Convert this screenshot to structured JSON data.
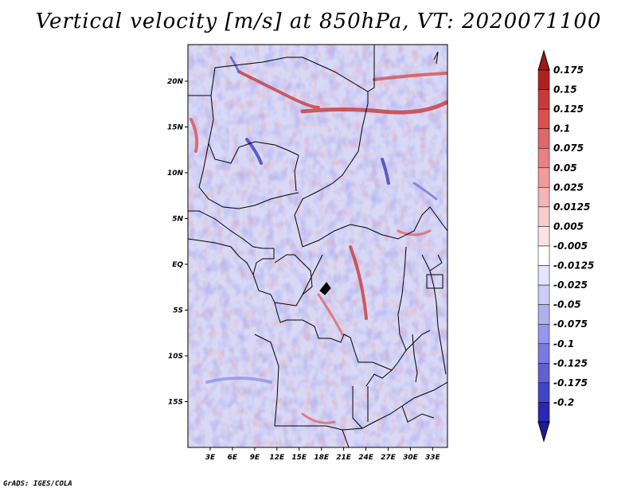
{
  "title": "Vertical velocity [m/s] at 850hPa, VT: 2020071100",
  "footer": "GrADS: IGES/COLA",
  "map": {
    "region": "Central Africa",
    "lon_range": [
      0,
      35
    ],
    "lat_range": [
      -20,
      24
    ],
    "lon_ticks": [
      {
        "value": 3,
        "label": "3E"
      },
      {
        "value": 6,
        "label": "6E"
      },
      {
        "value": 9,
        "label": "9E"
      },
      {
        "value": 12,
        "label": "12E"
      },
      {
        "value": 15,
        "label": "15E"
      },
      {
        "value": 18,
        "label": "18E"
      },
      {
        "value": 21,
        "label": "21E"
      },
      {
        "value": 24,
        "label": "24E"
      },
      {
        "value": 27,
        "label": "27E"
      },
      {
        "value": 30,
        "label": "30E"
      },
      {
        "value": 33,
        "label": "33E"
      }
    ],
    "lat_ticks": [
      {
        "value": 20,
        "label": "20N"
      },
      {
        "value": 15,
        "label": "15N"
      },
      {
        "value": 10,
        "label": "10N"
      },
      {
        "value": 5,
        "label": "5N"
      },
      {
        "value": 0,
        "label": "EQ"
      },
      {
        "value": -5,
        "label": "5S"
      },
      {
        "value": -10,
        "label": "10S"
      },
      {
        "value": -15,
        "label": "15S"
      }
    ]
  },
  "colorbar": {
    "levels": [
      {
        "label": "0.175",
        "color": "#b02020"
      },
      {
        "label": "0.15",
        "color": "#c83a3a"
      },
      {
        "label": "0.125",
        "color": "#d85050"
      },
      {
        "label": "0.1",
        "color": "#e06868"
      },
      {
        "label": "0.075",
        "color": "#e88282"
      },
      {
        "label": "0.05",
        "color": "#f09a9a"
      },
      {
        "label": "0.025",
        "color": "#f5b5b5"
      },
      {
        "label": "0.0125",
        "color": "#f9cdcd"
      },
      {
        "label": "0.005",
        "color": "#fce4e4"
      },
      {
        "label": "-0.005",
        "color": "#ffffff"
      },
      {
        "label": "-0.0125",
        "color": "#e4e4fb"
      },
      {
        "label": "-0.025",
        "color": "#ccccf6"
      },
      {
        "label": "-0.05",
        "color": "#b0b0f0"
      },
      {
        "label": "-0.075",
        "color": "#9696ea"
      },
      {
        "label": "-0.1",
        "color": "#7a7ae0"
      },
      {
        "label": "-0.125",
        "color": "#5f5fd6"
      },
      {
        "label": "-0.175",
        "color": "#4444c8"
      },
      {
        "label": "-0.2",
        "color": "#2828b0"
      }
    ],
    "extend_top_color": "#a01818",
    "extend_bottom_color": "#1c1c9a"
  }
}
